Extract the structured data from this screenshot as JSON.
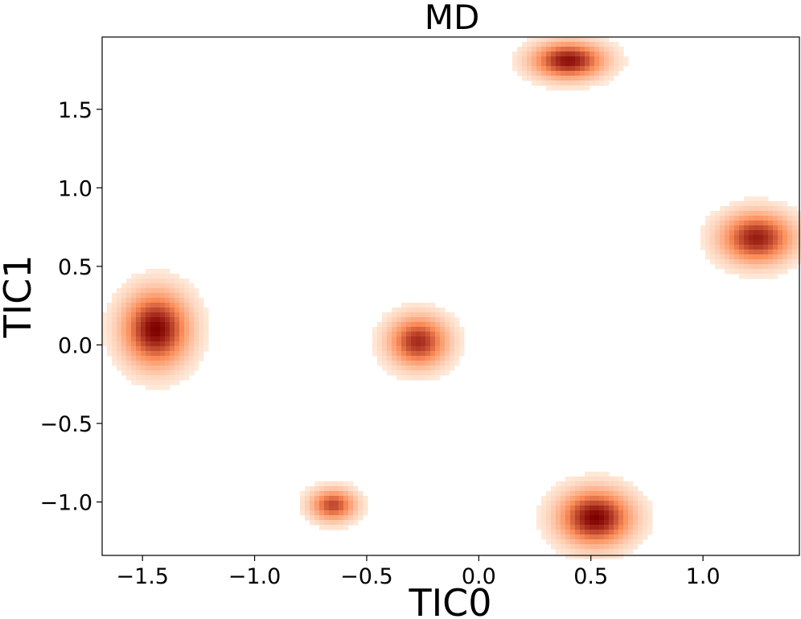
{
  "chart_data": {
    "type": "heatmap",
    "title": "MD",
    "xlabel": "TIC0",
    "ylabel": "TIC1",
    "xlim": [
      -1.68,
      1.43
    ],
    "ylim": [
      -1.34,
      1.96
    ],
    "xticks": [
      -1.5,
      -1.0,
      -0.5,
      0.0,
      0.5,
      1.0
    ],
    "xtick_labels": [
      "−1.5",
      "−1.0",
      "−0.5",
      "0.0",
      "0.5",
      "1.0"
    ],
    "yticks": [
      -1.0,
      -0.5,
      0.0,
      0.5,
      1.0,
      1.5
    ],
    "ytick_labels": [
      "−1.0",
      "−0.5",
      "0.0",
      "0.5",
      "1.0",
      "1.5"
    ],
    "grid": false,
    "colormap": "OrRd",
    "colors": {
      "low": "#fff7ec",
      "mid": "#fc8d59",
      "high": "#7f0000"
    },
    "clusters": [
      {
        "center": [
          -1.44,
          0.1
        ],
        "spread": [
          0.1,
          0.16
        ],
        "peak": 1.0
      },
      {
        "center": [
          -0.27,
          0.02
        ],
        "spread": [
          0.09,
          0.11
        ],
        "peak": 0.85
      },
      {
        "center": [
          0.4,
          1.81
        ],
        "spread": [
          0.11,
          0.08
        ],
        "peak": 0.95
      },
      {
        "center": [
          1.24,
          0.68
        ],
        "spread": [
          0.11,
          0.11
        ],
        "peak": 0.9
      },
      {
        "center": [
          -0.65,
          -1.02
        ],
        "spread": [
          0.07,
          0.07
        ],
        "peak": 0.75
      },
      {
        "center": [
          0.52,
          -1.1
        ],
        "spread": [
          0.11,
          0.12
        ],
        "peak": 1.0
      }
    ]
  }
}
